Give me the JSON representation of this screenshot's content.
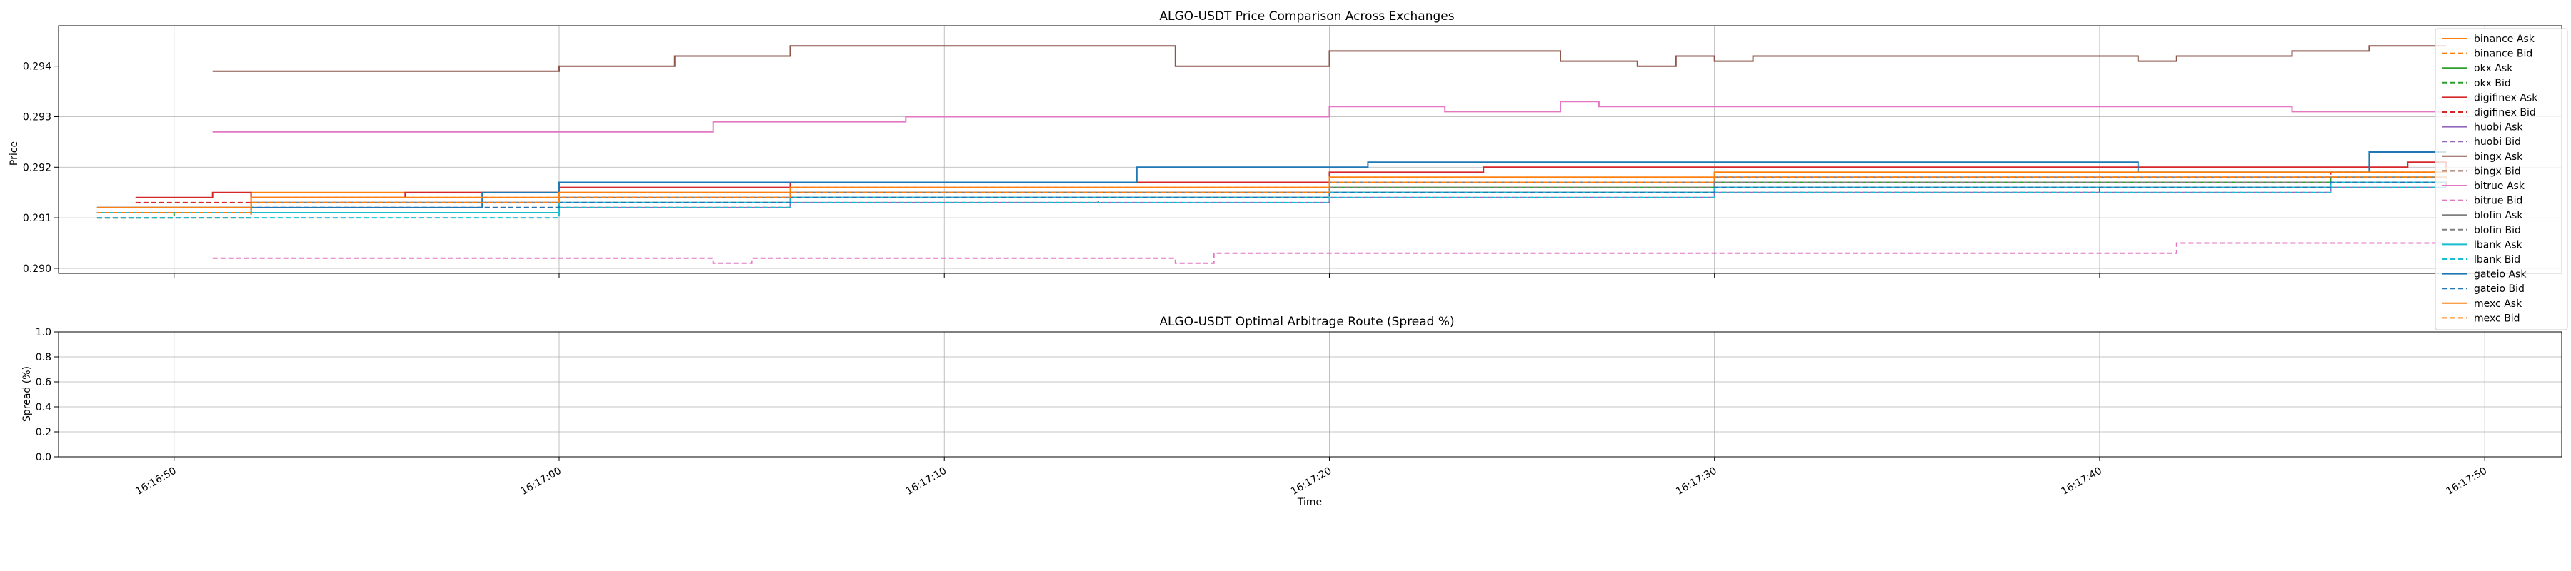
{
  "chart_data": [
    {
      "type": "line",
      "title": "ALGO-USDT Price Comparison Across Exchanges",
      "xlabel": "",
      "ylabel": "Price",
      "xlim": [
        "16:16:47",
        "16:17:52"
      ],
      "ylim": [
        0.2899,
        0.2948
      ],
      "yticks": [
        "0.290",
        "0.291",
        "0.292",
        "0.293",
        "0.294"
      ],
      "grid": true,
      "legend_position": "right",
      "series": [
        {
          "name": "binance Ask",
          "color": "#ff7f0e",
          "dash": false,
          "x": [
            "16:16:48",
            "16:16:52",
            "16:17:00",
            "16:17:06",
            "16:17:14",
            "16:17:20",
            "16:17:30",
            "16:17:40",
            "16:17:46",
            "16:17:49"
          ],
          "values": [
            0.2912,
            0.2915,
            0.2915,
            0.2917,
            0.2917,
            0.2918,
            0.2919,
            0.2919,
            0.2919,
            0.292
          ]
        },
        {
          "name": "binance Bid",
          "color": "#ff7f0e",
          "dash": true,
          "x": [
            "16:16:48",
            "16:16:52",
            "16:17:00",
            "16:17:06",
            "16:17:14",
            "16:17:20",
            "16:17:30",
            "16:17:40",
            "16:17:46",
            "16:17:49"
          ],
          "values": [
            0.2911,
            0.2914,
            0.2914,
            0.2916,
            0.2916,
            0.2917,
            0.2918,
            0.2918,
            0.2918,
            0.2919
          ]
        },
        {
          "name": "okx Ask",
          "color": "#2ca02c",
          "dash": false,
          "x": [
            "16:16:48",
            "16:16:52",
            "16:17:00",
            "16:17:06",
            "16:17:14",
            "16:17:20",
            "16:17:30",
            "16:17:40",
            "16:17:46",
            "16:17:49"
          ],
          "values": [
            0.2911,
            0.2913,
            0.2913,
            0.2915,
            0.2915,
            0.2916,
            0.2917,
            0.2917,
            0.2918,
            0.2918
          ]
        },
        {
          "name": "okx Bid",
          "color": "#2ca02c",
          "dash": true,
          "x": [
            "16:16:48",
            "16:16:50",
            "16:16:52",
            "16:17:00",
            "16:17:06",
            "16:17:14",
            "16:17:20",
            "16:17:30",
            "16:17:40",
            "16:17:46",
            "16:17:49"
          ],
          "values": [
            0.291,
            0.2911,
            0.2911,
            0.2912,
            0.2914,
            0.2914,
            0.2915,
            0.2916,
            0.2916,
            0.2917,
            0.2917
          ]
        },
        {
          "name": "digifinex Ask",
          "color": "#d62728",
          "dash": false,
          "x": [
            "16:16:49",
            "16:16:51",
            "16:16:52",
            "16:16:56",
            "16:17:00",
            "16:17:06",
            "16:17:14",
            "16:17:20",
            "16:17:24",
            "16:17:30",
            "16:17:40",
            "16:17:46",
            "16:17:48",
            "16:17:49"
          ],
          "values": [
            0.2914,
            0.2915,
            0.2914,
            0.2915,
            0.2916,
            0.2917,
            0.2917,
            0.2919,
            0.292,
            0.292,
            0.292,
            0.292,
            0.2921,
            0.292
          ]
        },
        {
          "name": "digifinex Bid",
          "color": "#d62728",
          "dash": true,
          "x": [
            "16:16:49",
            "16:16:52",
            "16:17:00",
            "16:17:06",
            "16:17:14",
            "16:17:20",
            "16:17:30",
            "16:17:40",
            "16:17:46",
            "16:17:49"
          ],
          "values": [
            0.2913,
            0.2913,
            0.2914,
            0.2915,
            0.2915,
            0.2917,
            0.2918,
            0.2918,
            0.2919,
            0.2919
          ]
        },
        {
          "name": "huobi Ask",
          "color": "#9467bd",
          "dash": false,
          "x": [
            "16:16:48",
            "16:16:52",
            "16:17:00",
            "16:17:06",
            "16:17:14",
            "16:17:20",
            "16:17:30",
            "16:17:40",
            "16:17:46",
            "16:17:49"
          ],
          "values": [
            0.2912,
            0.2913,
            0.2913,
            0.2914,
            0.2914,
            0.2915,
            0.2916,
            0.2916,
            0.2917,
            0.2917
          ]
        },
        {
          "name": "huobi Bid",
          "color": "#9467bd",
          "dash": true,
          "x": [
            "16:16:48",
            "16:16:52",
            "16:17:00",
            "16:17:06",
            "16:17:14",
            "16:17:20",
            "16:17:30",
            "16:17:40",
            "16:17:46",
            "16:17:49"
          ],
          "values": [
            0.2911,
            0.2912,
            0.2912,
            0.2913,
            0.2913,
            0.2914,
            0.2915,
            0.2915,
            0.2916,
            0.2916
          ]
        },
        {
          "name": "bingx Ask",
          "color": "#8c564b",
          "dash": false,
          "x": [
            "16:16:51",
            "16:16:58",
            "16:17:00",
            "16:17:01",
            "16:17:03",
            "16:17:05",
            "16:17:06",
            "16:17:15",
            "16:17:16",
            "16:17:17",
            "16:17:20",
            "16:17:26",
            "16:17:28",
            "16:17:29",
            "16:17:30",
            "16:17:31",
            "16:17:40",
            "16:17:41",
            "16:17:42",
            "16:17:44",
            "16:17:45",
            "16:17:47",
            "16:17:49"
          ],
          "values": [
            0.2939,
            0.2939,
            0.294,
            0.294,
            0.2942,
            0.2942,
            0.2944,
            0.2944,
            0.294,
            0.294,
            0.2943,
            0.2941,
            0.294,
            0.2942,
            0.2941,
            0.2942,
            0.2942,
            0.2941,
            0.2942,
            0.2942,
            0.2943,
            0.2944,
            0.2944
          ]
        },
        {
          "name": "bingx Bid",
          "color": "#8c564b",
          "dash": true,
          "x": [
            "16:16:48",
            "16:16:52",
            "16:17:00",
            "16:17:06",
            "16:17:14",
            "16:17:20",
            "16:17:30",
            "16:17:40",
            "16:17:46",
            "16:17:49"
          ],
          "values": [
            0.291,
            0.2911,
            0.2912,
            0.2913,
            0.2914,
            0.2915,
            0.2915,
            0.2916,
            0.2916,
            0.2918
          ]
        },
        {
          "name": "bitrue Ask",
          "color": "#e377c2",
          "dash": false,
          "x": [
            "16:16:51",
            "16:17:01",
            "16:17:04",
            "16:17:07",
            "16:17:09",
            "16:17:19",
            "16:17:20",
            "16:17:23",
            "16:17:25",
            "16:17:26",
            "16:17:27",
            "16:17:40",
            "16:17:45",
            "16:17:49"
          ],
          "values": [
            0.2927,
            0.2927,
            0.2929,
            0.2929,
            0.293,
            0.293,
            0.2932,
            0.2931,
            0.2931,
            0.2933,
            0.2932,
            0.2932,
            0.2931,
            0.293
          ]
        },
        {
          "name": "bitrue Bid",
          "color": "#e377c2",
          "dash": true,
          "x": [
            "16:16:51",
            "16:17:02",
            "16:17:04",
            "16:17:05",
            "16:17:13",
            "16:17:16",
            "16:17:17",
            "16:17:41",
            "16:17:42",
            "16:17:49"
          ],
          "values": [
            0.2902,
            0.2902,
            0.2901,
            0.2902,
            0.2902,
            0.2901,
            0.2903,
            0.2903,
            0.2905,
            0.2905
          ]
        },
        {
          "name": "blofin Ask",
          "color": "#7f7f7f",
          "dash": false,
          "x": [
            "16:16:48",
            "16:16:52",
            "16:17:00",
            "16:17:06",
            "16:17:14",
            "16:17:20",
            "16:17:30",
            "16:17:40",
            "16:17:46",
            "16:17:49"
          ],
          "values": [
            0.2912,
            0.2913,
            0.2914,
            0.2915,
            0.2915,
            0.2917,
            0.2918,
            0.2918,
            0.2918,
            0.2918
          ]
        },
        {
          "name": "blofin Bid",
          "color": "#7f7f7f",
          "dash": true,
          "x": [
            "16:16:48",
            "16:16:52",
            "16:17:00",
            "16:17:06",
            "16:17:14",
            "16:17:20",
            "16:17:30",
            "16:17:40",
            "16:17:46",
            "16:17:49"
          ],
          "values": [
            0.2911,
            0.2912,
            0.2913,
            0.2914,
            0.2914,
            0.2916,
            0.2917,
            0.2917,
            0.2917,
            0.2917
          ]
        },
        {
          "name": "lbank Ask",
          "color": "#17becf",
          "dash": false,
          "x": [
            "16:16:48",
            "16:16:52",
            "16:17:00",
            "16:17:06",
            "16:17:14",
            "16:17:20",
            "16:17:30",
            "16:17:40",
            "16:17:46",
            "16:17:49"
          ],
          "values": [
            0.2911,
            0.2911,
            0.2913,
            0.2914,
            0.2914,
            0.2915,
            0.2916,
            0.2916,
            0.2917,
            0.2917
          ]
        },
        {
          "name": "lbank Bid",
          "color": "#17becf",
          "dash": true,
          "x": [
            "16:16:48",
            "16:16:52",
            "16:17:00",
            "16:17:06",
            "16:17:14",
            "16:17:20",
            "16:17:30",
            "16:17:40",
            "16:17:46",
            "16:17:49"
          ],
          "values": [
            0.291,
            0.291,
            0.2912,
            0.2913,
            0.2913,
            0.2914,
            0.2915,
            0.2915,
            0.2916,
            0.2916
          ]
        },
        {
          "name": "gateio Ask",
          "color": "#1f77b4",
          "dash": false,
          "x": [
            "16:16:48",
            "16:16:58",
            "16:17:00",
            "16:17:01",
            "16:17:06",
            "16:17:14",
            "16:17:15",
            "16:17:20",
            "16:17:21",
            "16:17:30",
            "16:17:40",
            "16:17:41",
            "16:17:46",
            "16:17:47",
            "16:17:49"
          ],
          "values": [
            0.2912,
            0.2915,
            0.2917,
            0.2917,
            0.2917,
            0.2917,
            0.292,
            0.292,
            0.2921,
            0.2921,
            0.2921,
            0.2919,
            0.2919,
            0.2923,
            0.2923
          ]
        },
        {
          "name": "gateio Bid",
          "color": "#1f77b4",
          "dash": true,
          "x": [
            "16:16:48",
            "16:16:52",
            "16:17:00",
            "16:17:06",
            "16:17:14",
            "16:17:20",
            "16:17:30",
            "16:17:40",
            "16:17:46",
            "16:17:49"
          ],
          "values": [
            0.2911,
            0.2912,
            0.2913,
            0.2914,
            0.2914,
            0.2915,
            0.2916,
            0.2916,
            0.2917,
            0.2917
          ]
        },
        {
          "name": "mexc Ask",
          "color": "#ff7f0e",
          "dash": false,
          "x": [
            "16:16:48",
            "16:16:52",
            "16:17:00",
            "16:17:06",
            "16:17:14",
            "16:17:20",
            "16:17:30",
            "16:17:40",
            "16:17:46",
            "16:17:49"
          ],
          "values": [
            0.2912,
            0.2914,
            0.2915,
            0.2916,
            0.2916,
            0.2918,
            0.2919,
            0.2919,
            0.2919,
            0.2919
          ]
        },
        {
          "name": "mexc Bid",
          "color": "#ff7f0e",
          "dash": true,
          "x": [
            "16:16:48",
            "16:16:52",
            "16:17:00",
            "16:17:06",
            "16:17:14",
            "16:17:20",
            "16:17:30",
            "16:17:40",
            "16:17:46",
            "16:17:49"
          ],
          "values": [
            0.2911,
            0.2913,
            0.2914,
            0.2915,
            0.2915,
            0.2917,
            0.2918,
            0.2918,
            0.2918,
            0.2918
          ]
        }
      ]
    },
    {
      "type": "line",
      "title": "ALGO-USDT Optimal Arbitrage Route (Spread %)",
      "xlabel": "Time",
      "ylabel": "Spread (%)",
      "xlim": [
        "16:16:47",
        "16:17:52"
      ],
      "ylim": [
        0.0,
        1.0
      ],
      "yticks": [
        "0.0",
        "0.2",
        "0.4",
        "0.6",
        "0.8",
        "1.0"
      ],
      "xticks": [
        "16:16:50",
        "16:17:00",
        "16:17:10",
        "16:17:20",
        "16:17:30",
        "16:17:40",
        "16:17:50"
      ],
      "grid": true,
      "series": []
    }
  ]
}
